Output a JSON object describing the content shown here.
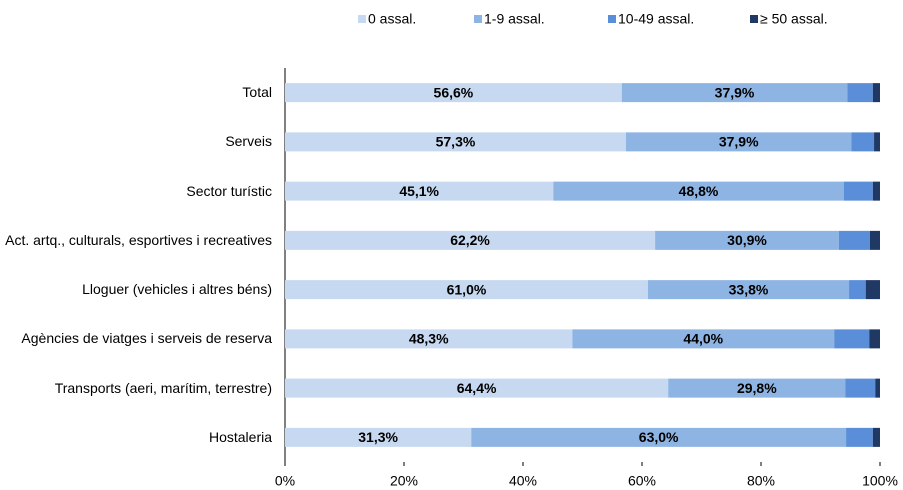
{
  "chart_data": {
    "type": "stacked-barh",
    "categories": [
      "Total",
      "Serveis",
      "Sector turístic",
      "Act. artq., culturals, esportives i recreatives",
      "Lloguer (vehicles i altres béns)",
      "Agències de viatges i serveis de reserva",
      "Transports (aeri, marítim, terrestre)",
      "Hostaleria"
    ],
    "series": [
      {
        "name": "0 assal.",
        "color": "#c6d9f0",
        "values": [
          56.6,
          57.3,
          45.1,
          62.2,
          61.0,
          48.3,
          64.4,
          31.3
        ],
        "value_labels": [
          "56,6%",
          "57,3%",
          "45,1%",
          "62,2%",
          "61,0%",
          "48,3%",
          "64,4%",
          "31,3%"
        ]
      },
      {
        "name": "1-9 assal.",
        "color": "#8eb4e3",
        "values": [
          37.9,
          37.9,
          48.8,
          30.9,
          33.8,
          44.0,
          29.8,
          63.0
        ],
        "value_labels": [
          "37,9%",
          "37,9%",
          "48,8%",
          "30,9%",
          "33,8%",
          "44,0%",
          "29,8%",
          "63,0%"
        ]
      },
      {
        "name": "10-49 assal.",
        "color": "#5a8ed8",
        "values": [
          4.3,
          3.8,
          4.9,
          5.2,
          2.8,
          5.9,
          5.0,
          4.5
        ]
      },
      {
        "name": "≥ 50 assal.",
        "color": "#1f3864",
        "values": [
          1.2,
          1.0,
          1.2,
          1.7,
          2.4,
          1.8,
          0.8,
          1.2
        ]
      }
    ],
    "xlim": [
      0,
      100
    ],
    "xticks": [
      {
        "value": 0,
        "label": "0%"
      },
      {
        "value": 20,
        "label": "20%"
      },
      {
        "value": 40,
        "label": "40%"
      },
      {
        "value": 60,
        "label": "60%"
      },
      {
        "value": 80,
        "label": "80%"
      },
      {
        "value": 100,
        "label": "100%"
      }
    ],
    "legend": "top"
  }
}
